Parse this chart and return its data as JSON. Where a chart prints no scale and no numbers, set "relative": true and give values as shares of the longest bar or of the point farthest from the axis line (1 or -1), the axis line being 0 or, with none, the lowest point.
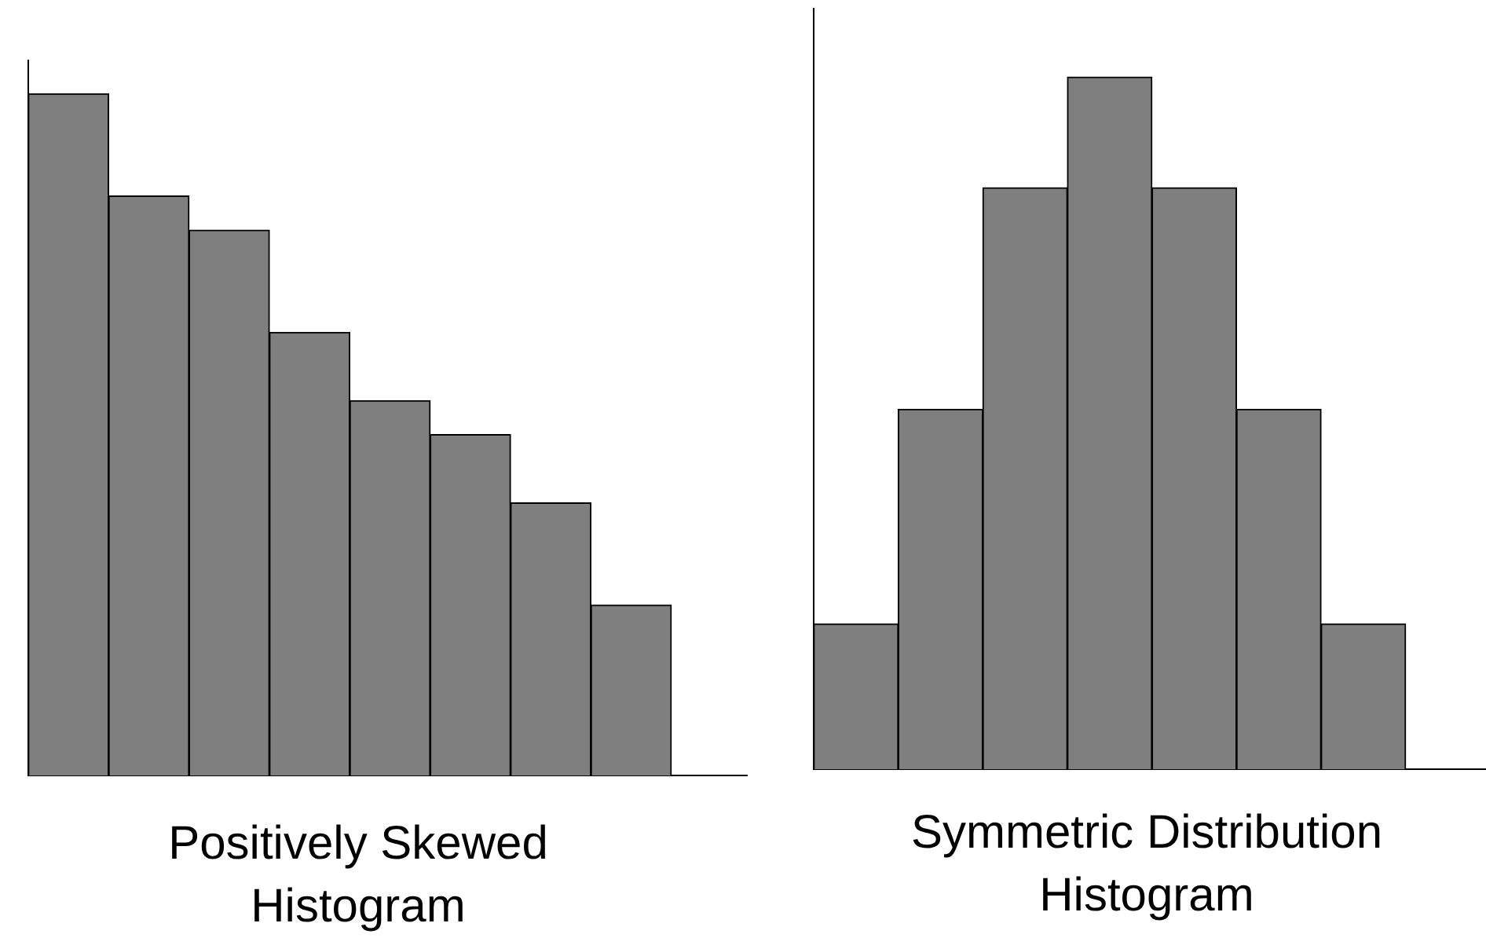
{
  "chart_data": [
    {
      "type": "bar",
      "relative": true,
      "categories": [
        null,
        null,
        null,
        null,
        null,
        null,
        null,
        null
      ],
      "values": [
        1,
        0.85,
        0.8,
        0.65,
        0.55,
        0.5,
        0.4,
        0.25
      ],
      "color": "#7f7f7f",
      "xlabel": "Positively Skewed Histogram"
    },
    {
      "type": "bar",
      "relative": true,
      "categories": [
        null,
        null,
        null,
        null,
        null,
        null,
        null
      ],
      "values": [
        0.21,
        0.52,
        0.84,
        1,
        0.84,
        0.52,
        0.21
      ],
      "color": "#7f7f7f",
      "xlabel": "Symmetric Distribution Histogram"
    }
  ]
}
